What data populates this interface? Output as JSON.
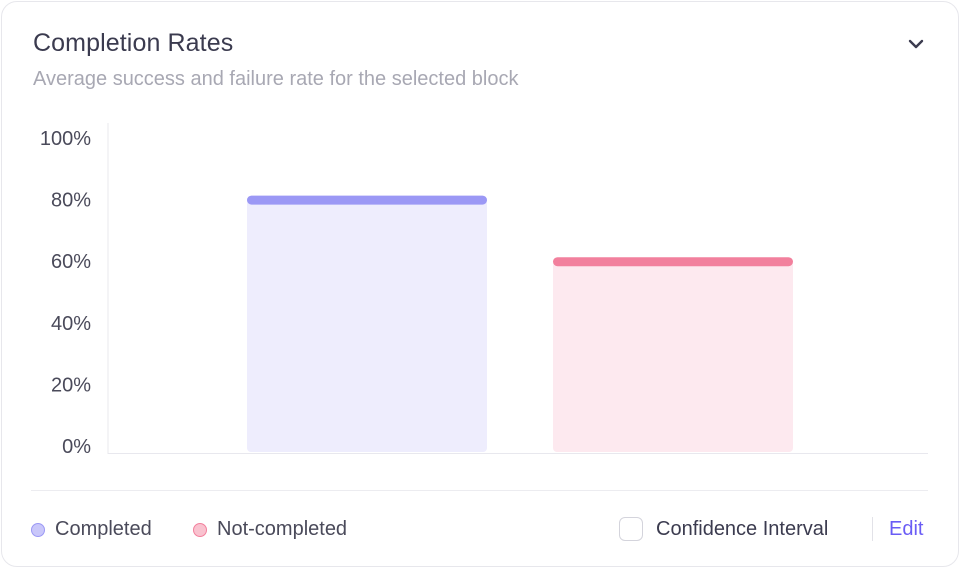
{
  "card": {
    "title": "Completion Rates",
    "subtitle": "Average success and failure rate for the selected block",
    "collapse_icon": "chevron-down-icon"
  },
  "chart_data": {
    "type": "bar",
    "categories": [
      "Completed",
      "Not-completed"
    ],
    "values": [
      80,
      60
    ],
    "unit": "%",
    "ylim": [
      0,
      100
    ],
    "yticks": [
      "100%",
      "80%",
      "60%",
      "40%",
      "20%",
      "0%"
    ],
    "grid": false,
    "legend_placement": "bottom-left",
    "series_colors": {
      "Completed": {
        "fill": "#eeedfd",
        "line": "#9b98f5"
      },
      "Not-completed": {
        "fill": "#fde9ef",
        "line": "#f2809d"
      }
    }
  },
  "legend": {
    "items": [
      {
        "label": "Completed",
        "color": "#9b98f5",
        "fill": "#c9c7fa"
      },
      {
        "label": "Not-completed",
        "color": "#f2809d",
        "fill": "#f9c2cf"
      }
    ]
  },
  "footer": {
    "confidence_interval_label": "Confidence Interval",
    "confidence_interval_checked": false,
    "edit_label": "Edit"
  },
  "colors": {
    "accent": "#6a5cf5"
  }
}
